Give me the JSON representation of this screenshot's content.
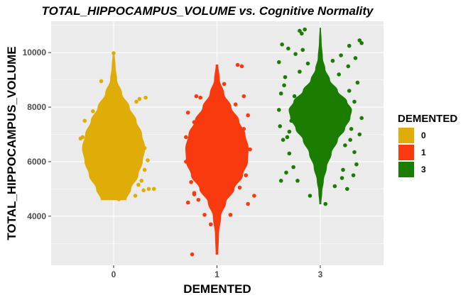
{
  "chart_data": {
    "type": "violin",
    "title": "TOTAL_HIPPOCAMPUS_VOLUME vs. Cognitive Normality",
    "xlabel": "DEMENTED",
    "ylabel": "TOTAL_HIPPOCAMPUS_VOLUME",
    "categories": [
      "0",
      "1",
      "3"
    ],
    "yticks": [
      4000,
      6000,
      8000,
      10000
    ],
    "ylim": [
      2200,
      11150
    ],
    "grid": true,
    "legend": {
      "title": "DEMENTED",
      "position": "right",
      "entries": [
        {
          "label": "0",
          "color": "#E0AC08"
        },
        {
          "label": "1",
          "color": "#F83A0E"
        },
        {
          "label": "3",
          "color": "#1A7D00"
        }
      ]
    },
    "series": [
      {
        "category": "0",
        "color": "#E0AC08",
        "min": 4600,
        "max": 9950,
        "density": [
          [
            4600,
            0.4
          ],
          [
            5000,
            0.55
          ],
          [
            5500,
            0.78
          ],
          [
            6000,
            0.92
          ],
          [
            6500,
            1.0
          ],
          [
            7000,
            0.9
          ],
          [
            7500,
            0.72
          ],
          [
            8000,
            0.5
          ],
          [
            8500,
            0.26
          ],
          [
            9000,
            0.1
          ],
          [
            9500,
            0.05
          ],
          [
            9950,
            0.02
          ]
        ],
        "points": [
          [
            -0.28,
            7500
          ],
          [
            -0.2,
            7850
          ],
          [
            -0.12,
            8950
          ],
          [
            0.0,
            9980
          ],
          [
            0.25,
            8300
          ],
          [
            0.31,
            8350
          ],
          [
            0.22,
            8200
          ],
          [
            -0.3,
            6900
          ],
          [
            -0.25,
            6600
          ],
          [
            0.3,
            6500
          ],
          [
            0.33,
            6050
          ],
          [
            0.3,
            5700
          ],
          [
            0.27,
            5300
          ],
          [
            0.34,
            5000
          ],
          [
            0.39,
            5000
          ],
          [
            0.29,
            4950
          ],
          [
            0.24,
            5150
          ],
          [
            -0.32,
            6850
          ],
          [
            0.21,
            4750
          ],
          [
            0.05,
            4620
          ]
        ]
      },
      {
        "category": "1",
        "color": "#F83A0E",
        "min": 2600,
        "max": 9550,
        "density": [
          [
            2600,
            0.03
          ],
          [
            3300,
            0.05
          ],
          [
            4000,
            0.12
          ],
          [
            4500,
            0.28
          ],
          [
            5000,
            0.55
          ],
          [
            5500,
            0.82
          ],
          [
            6000,
            0.98
          ],
          [
            6500,
            1.0
          ],
          [
            7000,
            0.9
          ],
          [
            7500,
            0.7
          ],
          [
            8000,
            0.45
          ],
          [
            8500,
            0.22
          ],
          [
            9000,
            0.08
          ],
          [
            9550,
            0.03
          ]
        ],
        "points": [
          [
            -0.2,
            8400
          ],
          [
            -0.16,
            8350
          ],
          [
            -0.28,
            7800
          ],
          [
            -0.22,
            7450
          ],
          [
            -0.3,
            6900
          ],
          [
            -0.26,
            6400
          ],
          [
            -0.3,
            6000
          ],
          [
            -0.25,
            5250
          ],
          [
            -0.22,
            4850
          ],
          [
            -0.28,
            4500
          ],
          [
            -0.12,
            4050
          ],
          [
            -0.06,
            3700
          ],
          [
            -0.22,
            4800
          ],
          [
            0.26,
            8400
          ],
          [
            0.18,
            8100
          ],
          [
            0.3,
            7700
          ],
          [
            0.26,
            7200
          ],
          [
            0.2,
            7000
          ],
          [
            0.32,
            6450
          ],
          [
            0.25,
            6200
          ],
          [
            0.28,
            5500
          ],
          [
            0.22,
            5050
          ],
          [
            0.3,
            4450
          ],
          [
            0.36,
            4750
          ],
          [
            0.13,
            4050
          ],
          [
            0.2,
            9550
          ],
          [
            0.24,
            9500
          ],
          [
            0.07,
            8850
          ],
          [
            -0.24,
            2600
          ],
          [
            -0.18,
            4600
          ]
        ]
      },
      {
        "category": "3",
        "color": "#1A7D00",
        "min": 4450,
        "max": 10900,
        "density": [
          [
            4450,
            0.02
          ],
          [
            4900,
            0.05
          ],
          [
            5300,
            0.1
          ],
          [
            5800,
            0.2
          ],
          [
            6300,
            0.35
          ],
          [
            6800,
            0.55
          ],
          [
            7200,
            0.78
          ],
          [
            7600,
            0.95
          ],
          [
            7900,
            1.0
          ],
          [
            8200,
            0.85
          ],
          [
            8600,
            0.55
          ],
          [
            9000,
            0.3
          ],
          [
            9400,
            0.15
          ],
          [
            9800,
            0.07
          ],
          [
            10400,
            0.03
          ],
          [
            10900,
            0.01
          ]
        ],
        "points": [
          [
            -0.2,
            10800
          ],
          [
            -0.15,
            10850
          ],
          [
            -0.18,
            10700
          ],
          [
            0.38,
            10450
          ],
          [
            0.4,
            10350
          ],
          [
            0.28,
            10250
          ],
          [
            -0.37,
            10300
          ],
          [
            -0.31,
            10150
          ],
          [
            -0.24,
            9950
          ],
          [
            -0.4,
            9650
          ],
          [
            0.34,
            9800
          ],
          [
            0.27,
            9500
          ],
          [
            -0.34,
            9100
          ],
          [
            0.36,
            8900
          ],
          [
            -0.38,
            8500
          ],
          [
            -0.4,
            7900
          ],
          [
            -0.39,
            7300
          ],
          [
            0.4,
            7600
          ],
          [
            0.38,
            7000
          ],
          [
            -0.36,
            6800
          ],
          [
            -0.3,
            6300
          ],
          [
            0.33,
            6350
          ],
          [
            0.35,
            5900
          ],
          [
            -0.33,
            5600
          ],
          [
            -0.38,
            5300
          ],
          [
            0.32,
            5500
          ],
          [
            0.21,
            5400
          ],
          [
            0.26,
            5000
          ],
          [
            -0.1,
            4750
          ],
          [
            0.05,
            4450
          ],
          [
            -0.22,
            5300
          ],
          [
            0.14,
            5100
          ],
          [
            -0.25,
            8400
          ],
          [
            0.28,
            8600
          ],
          [
            -0.28,
            7500
          ],
          [
            0.3,
            7200
          ],
          [
            -0.2,
            9300
          ],
          [
            0.18,
            9200
          ],
          [
            -0.32,
            6900
          ],
          [
            0.24,
            6600
          ],
          [
            -0.17,
            10100
          ],
          [
            0.2,
            9900
          ],
          [
            -0.26,
            5800
          ],
          [
            0.22,
            5700
          ],
          [
            -0.12,
            9600
          ],
          [
            0.12,
            9700
          ],
          [
            -0.35,
            8800
          ],
          [
            0.33,
            8200
          ],
          [
            -0.3,
            7100
          ],
          [
            0.29,
            6800
          ]
        ]
      }
    ]
  }
}
